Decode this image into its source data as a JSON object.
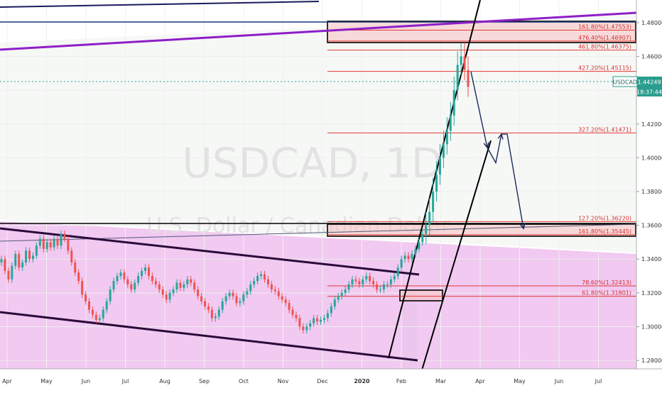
{
  "chart_data": {
    "type": "candlestick",
    "symbol": "USDCAD",
    "watermark": {
      "symbol_interval": "USDCAD, 1D",
      "description": "U.S. Dollar / Canadian Dollar"
    },
    "price_label": {
      "symbol": "USDCAD",
      "value": "1.44249",
      "countdown": "18:37:44"
    },
    "ylim": [
      1.275,
      1.485
    ],
    "y_ticks": [
      "1.48000",
      "1.46000",
      "1.44000",
      "1.42000",
      "1.40000",
      "1.38000",
      "1.36000",
      "1.34000",
      "1.32000",
      "1.30000",
      "1.28000"
    ],
    "y_tick_values": [
      1.48,
      1.46,
      1.44,
      1.42,
      1.4,
      1.38,
      1.36,
      1.34,
      1.32,
      1.3,
      1.28
    ],
    "x_ticks": [
      "Apr",
      "May",
      "Jun",
      "Jul",
      "Aug",
      "Sep",
      "Oct",
      "Nov",
      "Dec",
      "2020",
      "Feb",
      "Mar",
      "Apr",
      "May",
      "Jun",
      "Jul"
    ],
    "fib_levels": [
      {
        "label": "161.80%(1.47553)",
        "value": 1.47553
      },
      {
        "label": "476.40%(1.46907)",
        "value": 1.46907
      },
      {
        "label": "461.80%(1.46375)",
        "value": 1.46375
      },
      {
        "label": "427.20%(1.45115)",
        "value": 1.45115
      },
      {
        "label": "327.20%(1.41471)",
        "value": 1.41471
      },
      {
        "label": "127.20%(1.36220)",
        "value": 1.3622
      },
      {
        "label": "161.80%(1.35445)",
        "value": 1.35445
      },
      {
        "label": "78.60%(1.32413)",
        "value": 1.32413
      },
      {
        "label": "61.80%(1.31801)",
        "value": 1.31801
      }
    ],
    "last_price": 1.44249,
    "price_path": [
      [
        1.34,
        1.333,
        1.328,
        1.336,
        1.343,
        1.335,
        1.338,
        1.345,
        1.34,
        1.342,
        1.348,
        1.352,
        1.346,
        1.35,
        1.347,
        1.352,
        1.348,
        1.355,
        1.352,
        1.345,
        1.338,
        1.332,
        1.327,
        1.319,
        1.315,
        1.31,
        1.307,
        1.304,
        1.305,
        1.31,
        1.315,
        1.322,
        1.327,
        1.33,
        1.332,
        1.328,
        1.325,
        1.322,
        1.326,
        1.33,
        1.333,
        1.335,
        1.33,
        1.327,
        1.325,
        1.322,
        1.319,
        1.316,
        1.32,
        1.322,
        1.326,
        1.323,
        1.325,
        1.328,
        1.326,
        1.322,
        1.318,
        1.315,
        1.312,
        1.31,
        1.305,
        1.306,
        1.31,
        1.315,
        1.318,
        1.32,
        1.318,
        1.314,
        1.315,
        1.319,
        1.321,
        1.325,
        1.327,
        1.33,
        1.331,
        1.328,
        1.325,
        1.322,
        1.321,
        1.318,
        1.316,
        1.314,
        1.31,
        1.307,
        1.305,
        1.3,
        1.298,
        1.3,
        1.302,
        1.305,
        1.303,
        1.304,
        1.305,
        1.308,
        1.312,
        1.316,
        1.318,
        1.32,
        1.322,
        1.325,
        1.328,
        1.327,
        1.325,
        1.328,
        1.33,
        1.327,
        1.325,
        1.322,
        1.322,
        1.325,
        1.325,
        1.328,
        1.33,
        1.335,
        1.34,
        1.342,
        1.34,
        1.343,
        1.346,
        1.35,
        1.355,
        1.36,
        1.368,
        1.38,
        1.39,
        1.4,
        1.408,
        1.416,
        1.425,
        1.44,
        1.455,
        1.46,
        1.452,
        1.442
      ]
    ],
    "arrow_points": [
      [
        1.451,
        1.406
      ],
      [
        1.397,
        1.414
      ],
      [
        1.414,
        1.358
      ]
    ]
  }
}
